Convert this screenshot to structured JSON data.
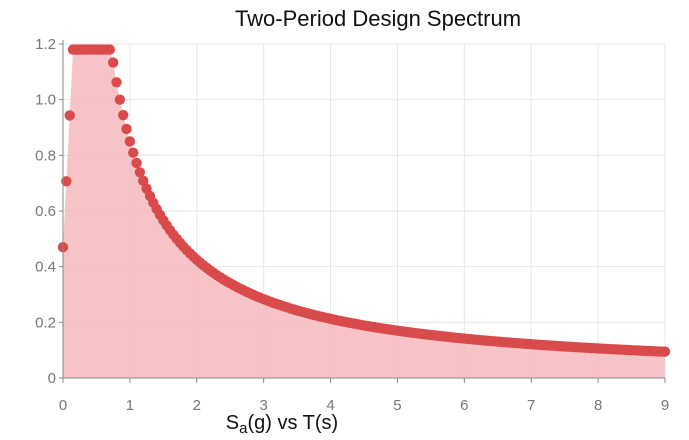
{
  "chart_data": {
    "type": "area",
    "title": "Two-Period Design Spectrum",
    "xlabel": {
      "main": "S",
      "sub": "a",
      "rest": "(g) vs T(s)"
    },
    "ylabel": "",
    "xlim": [
      0,
      9
    ],
    "ylim": [
      0,
      1.2
    ],
    "x_ticks": [
      "0",
      "1",
      "2",
      "3",
      "4",
      "5",
      "6",
      "7",
      "8",
      "9"
    ],
    "y_ticks": [
      "0",
      "0.2",
      "0.4",
      "0.6",
      "0.8",
      "1.0",
      "1.2"
    ],
    "grid": true,
    "legend": "none",
    "series": [
      {
        "color": "#d94b4b",
        "fill": "#f4b9bd",
        "spectrum": {
          "t0": 0.15,
          "ts": 0.73,
          "sds": 1.18,
          "sd1": 0.85,
          "pga": 0.47,
          "t_end": 9.0,
          "step": 0.05
        }
      }
    ]
  }
}
